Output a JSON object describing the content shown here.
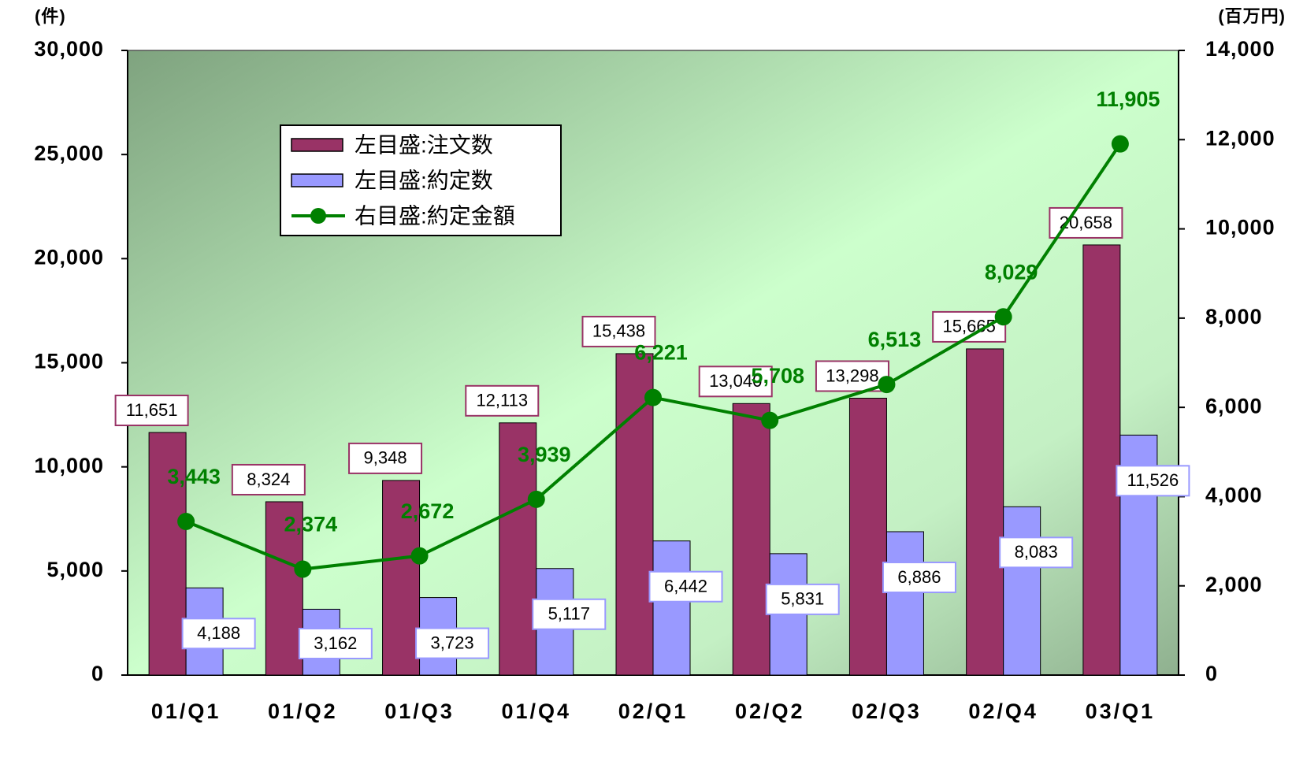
{
  "chart_data": {
    "type": "bar",
    "y_label": "(件)",
    "y2_label": "(百万円)",
    "categories": [
      "01/Q1",
      "01/Q2",
      "01/Q3",
      "01/Q4",
      "02/Q1",
      "02/Q2",
      "02/Q3",
      "02/Q4",
      "03/Q1"
    ],
    "series": [
      {
        "name": "左目盛:注文数",
        "color": "#993366",
        "type": "bar",
        "values": [
          11651,
          8324,
          9348,
          12113,
          15438,
          13040,
          13298,
          15665,
          20658
        ],
        "value_labels": [
          "11,651",
          "8,324",
          "9,348",
          "12,113",
          "15,438",
          "13,040",
          "13,298",
          "15,665",
          "20,658"
        ]
      },
      {
        "name": "左目盛:約定数",
        "color": "#9999ff",
        "type": "bar",
        "values": [
          4188,
          3162,
          3723,
          5117,
          6442,
          5831,
          6886,
          8083,
          11526
        ],
        "value_labels": [
          "4,188",
          "3,162",
          "3,723",
          "5,117",
          "6,442",
          "5,831",
          "6,886",
          "8,083",
          "11,526"
        ]
      },
      {
        "name": "右目盛:約定金額",
        "color": "#008000",
        "type": "line",
        "axis": "y2",
        "values": [
          3443,
          2374,
          2672,
          3939,
          6221,
          5708,
          6513,
          8029,
          11905
        ],
        "value_labels": [
          "3,443",
          "2,374",
          "2,672",
          "3,939",
          "6,221",
          "5,708",
          "6,513",
          "8,029",
          "11,905"
        ]
      }
    ],
    "ylim": [
      0,
      30000
    ],
    "yticks": [
      0,
      {
        "value": 5000,
        "label": "5,000"
      },
      {
        "value": 10000,
        "label": "10,000"
      },
      {
        "value": 15000,
        "label": "15,000"
      },
      {
        "value": 20000,
        "label": "20,000"
      },
      {
        "value": 25000,
        "label": "25,000"
      },
      {
        "value": 30000,
        "label": "30,000"
      }
    ],
    "y2lim": [
      0,
      14000
    ],
    "y2ticks": [
      0,
      {
        "value": 2000,
        "label": "2,000"
      },
      {
        "value": 4000,
        "label": "4,000"
      },
      {
        "value": 6000,
        "label": "6,000"
      },
      {
        "value": 8000,
        "label": "8,000"
      },
      {
        "value": 10000,
        "label": "10,000"
      },
      {
        "value": 12000,
        "label": "12,000"
      },
      {
        "value": 14000,
        "label": "14,000"
      }
    ],
    "legend": "top-left"
  }
}
